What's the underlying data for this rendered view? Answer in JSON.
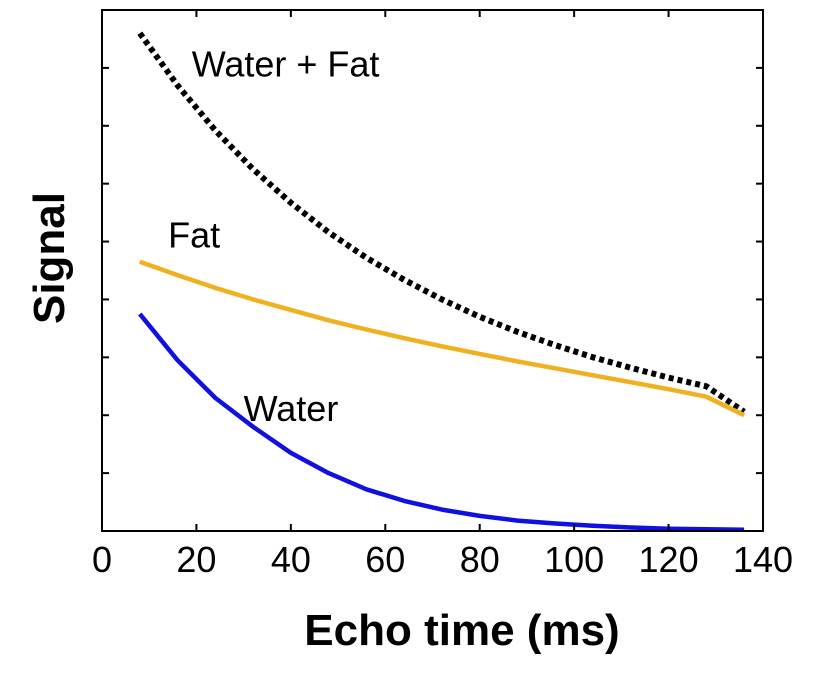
{
  "chart_data": {
    "type": "line",
    "xlabel": "Echo time (ms)",
    "ylabel": "Signal",
    "xlim": [
      0,
      140
    ],
    "ylim": [
      0,
      9
    ],
    "x_ticks": [
      0,
      20,
      40,
      60,
      80,
      100,
      120,
      140
    ],
    "x_tick_labels": [
      "0",
      "20",
      "40",
      "60",
      "80",
      "100",
      "120",
      "140"
    ],
    "y_ticks": [
      1,
      2,
      3,
      4,
      5,
      6,
      7,
      8
    ],
    "y_tick_labels_shown": false,
    "grid": false,
    "x": [
      8,
      16,
      24,
      32,
      40,
      48,
      56,
      64,
      72,
      80,
      88,
      96,
      104,
      112,
      120,
      128,
      136
    ],
    "series": [
      {
        "name": "Water + Fat",
        "style": "dotted",
        "color": "#000000",
        "values": [
          8.6,
          7.7,
          6.92,
          6.25,
          5.67,
          5.16,
          4.72,
          4.34,
          4.0,
          3.7,
          3.44,
          3.21,
          3.0,
          2.82,
          2.65,
          2.5,
          2.06
        ]
      },
      {
        "name": "Fat",
        "style": "solid",
        "color": "#f0b020",
        "values": [
          4.65,
          4.42,
          4.2,
          4.0,
          3.82,
          3.64,
          3.48,
          3.33,
          3.19,
          3.06,
          2.93,
          2.81,
          2.69,
          2.57,
          2.45,
          2.32,
          2.0
        ]
      },
      {
        "name": "Water",
        "style": "solid",
        "color": "#1010e0",
        "values": [
          3.75,
          2.95,
          2.3,
          1.8,
          1.35,
          1.0,
          0.72,
          0.52,
          0.37,
          0.26,
          0.18,
          0.13,
          0.09,
          0.06,
          0.04,
          0.03,
          0.02
        ]
      }
    ],
    "annotations": [
      {
        "text": "Water + Fat",
        "series": "Water + Fat",
        "x": 19,
        "y": 7.85
      },
      {
        "text": "Fat",
        "series": "Fat",
        "x": 14,
        "y": 4.9
      },
      {
        "text": "Water",
        "series": "Water",
        "x": 30,
        "y": 1.9
      }
    ]
  }
}
